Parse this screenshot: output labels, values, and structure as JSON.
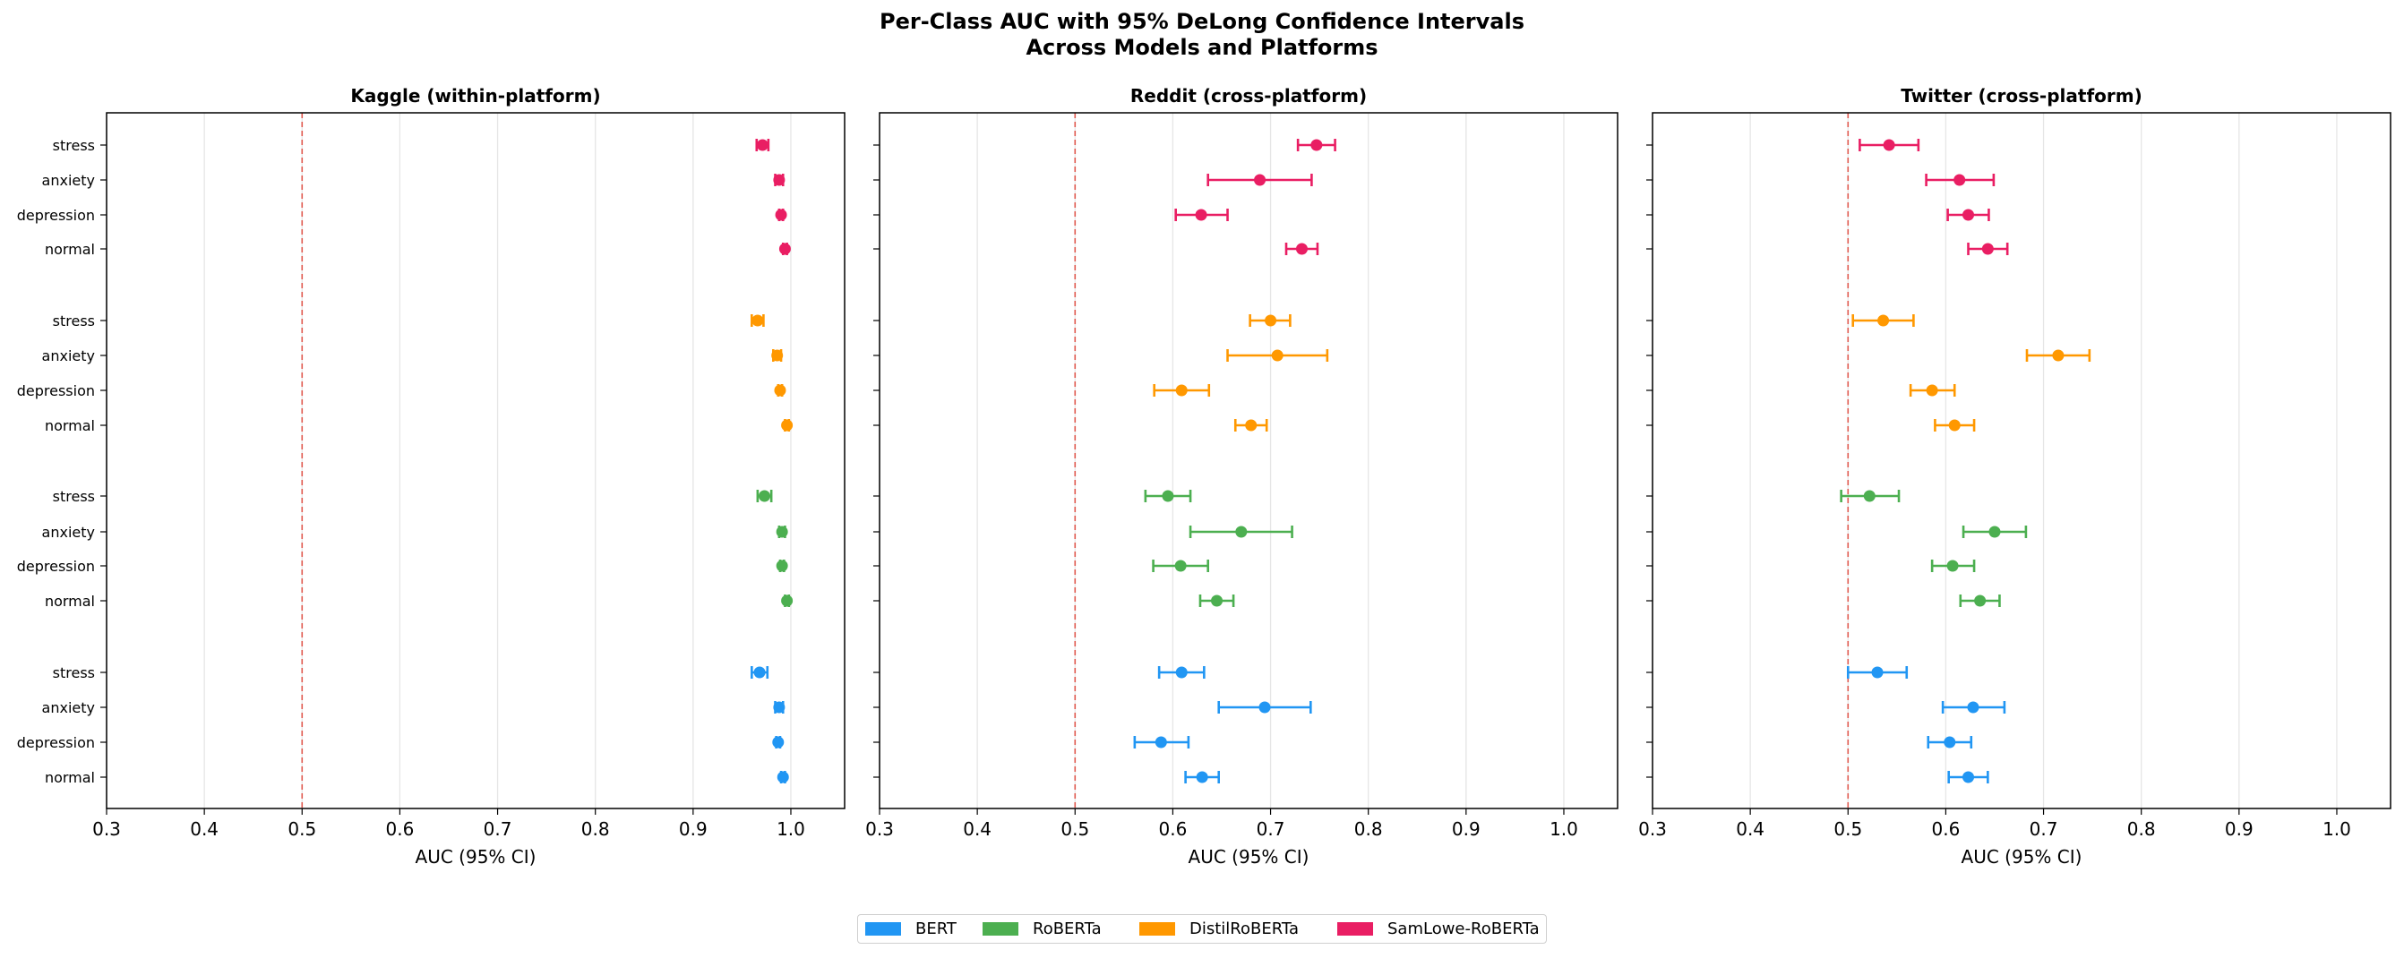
{
  "title_line1": "Per-Class AUC with 95% DeLong Confidence Intervals",
  "title_line2": "Across Models and Platforms",
  "colors": {
    "BERT": "#2196f3",
    "RoBERTa": "#4caf50",
    "DistilRoBERTa": "#ff9800",
    "SamLowe-RoBERTa": "#e91e63",
    "reference_line": "#e05a4f",
    "grid": "#e6e6e6"
  },
  "legend": [
    "BERT",
    "RoBERTa",
    "DistilRoBERTa",
    "SamLowe-RoBERTa"
  ],
  "chart_data": [
    {
      "type": "errorbar",
      "title": "Kaggle (within-platform)",
      "xlabel": "AUC (95% CI)",
      "xlim": [
        0.3,
        1.055
      ],
      "xticks": [
        "0.3",
        "0.4",
        "0.5",
        "0.6",
        "0.7",
        "0.8",
        "0.9",
        "1.0"
      ],
      "reference_x": 0.5,
      "grid": "x",
      "categories_top_to_bottom": [
        {
          "model": "SamLowe-RoBERTa",
          "class": "stress",
          "auc": 0.971,
          "ci": [
            0.965,
            0.977
          ]
        },
        {
          "model": "SamLowe-RoBERTa",
          "class": "anxiety",
          "auc": 0.988,
          "ci": [
            0.984,
            0.992
          ]
        },
        {
          "model": "SamLowe-RoBERTa",
          "class": "depression",
          "auc": 0.99,
          "ci": [
            0.988,
            0.992
          ]
        },
        {
          "model": "SamLowe-RoBERTa",
          "class": "normal",
          "auc": 0.994,
          "ci": [
            0.992,
            0.996
          ]
        },
        {
          "model": "DistilRoBERTa",
          "class": "stress",
          "auc": 0.966,
          "ci": [
            0.96,
            0.972
          ]
        },
        {
          "model": "DistilRoBERTa",
          "class": "anxiety",
          "auc": 0.986,
          "ci": [
            0.982,
            0.99
          ]
        },
        {
          "model": "DistilRoBERTa",
          "class": "depression",
          "auc": 0.989,
          "ci": [
            0.987,
            0.991
          ]
        },
        {
          "model": "DistilRoBERTa",
          "class": "normal",
          "auc": 0.996,
          "ci": [
            0.994,
            0.998
          ]
        },
        {
          "model": "RoBERTa",
          "class": "stress",
          "auc": 0.973,
          "ci": [
            0.966,
            0.98
          ]
        },
        {
          "model": "RoBERTa",
          "class": "anxiety",
          "auc": 0.991,
          "ci": [
            0.988,
            0.994
          ]
        },
        {
          "model": "RoBERTa",
          "class": "depression",
          "auc": 0.991,
          "ci": [
            0.989,
            0.993
          ]
        },
        {
          "model": "RoBERTa",
          "class": "normal",
          "auc": 0.996,
          "ci": [
            0.994,
            0.998
          ]
        },
        {
          "model": "BERT",
          "class": "stress",
          "auc": 0.968,
          "ci": [
            0.96,
            0.976
          ]
        },
        {
          "model": "BERT",
          "class": "anxiety",
          "auc": 0.988,
          "ci": [
            0.984,
            0.992
          ]
        },
        {
          "model": "BERT",
          "class": "depression",
          "auc": 0.987,
          "ci": [
            0.985,
            0.989
          ]
        },
        {
          "model": "BERT",
          "class": "normal",
          "auc": 0.992,
          "ci": [
            0.99,
            0.994
          ]
        }
      ]
    },
    {
      "type": "errorbar",
      "title": "Reddit (cross-platform)",
      "xlabel": "AUC (95% CI)",
      "xlim": [
        0.3,
        1.055
      ],
      "xticks": [
        "0.3",
        "0.4",
        "0.5",
        "0.6",
        "0.7",
        "0.8",
        "0.9",
        "1.0"
      ],
      "reference_x": 0.5,
      "grid": "x",
      "categories_top_to_bottom": [
        {
          "model": "SamLowe-RoBERTa",
          "class": "stress",
          "auc": 0.747,
          "ci": [
            0.728,
            0.766
          ]
        },
        {
          "model": "SamLowe-RoBERTa",
          "class": "anxiety",
          "auc": 0.689,
          "ci": [
            0.636,
            0.742
          ]
        },
        {
          "model": "SamLowe-RoBERTa",
          "class": "depression",
          "auc": 0.629,
          "ci": [
            0.603,
            0.656
          ]
        },
        {
          "model": "SamLowe-RoBERTa",
          "class": "normal",
          "auc": 0.732,
          "ci": [
            0.716,
            0.748
          ]
        },
        {
          "model": "DistilRoBERTa",
          "class": "stress",
          "auc": 0.7,
          "ci": [
            0.679,
            0.72
          ]
        },
        {
          "model": "DistilRoBERTa",
          "class": "anxiety",
          "auc": 0.707,
          "ci": [
            0.656,
            0.758
          ]
        },
        {
          "model": "DistilRoBERTa",
          "class": "depression",
          "auc": 0.609,
          "ci": [
            0.581,
            0.637
          ]
        },
        {
          "model": "DistilRoBERTa",
          "class": "normal",
          "auc": 0.68,
          "ci": [
            0.664,
            0.696
          ]
        },
        {
          "model": "RoBERTa",
          "class": "stress",
          "auc": 0.595,
          "ci": [
            0.572,
            0.618
          ]
        },
        {
          "model": "RoBERTa",
          "class": "anxiety",
          "auc": 0.67,
          "ci": [
            0.618,
            0.722
          ]
        },
        {
          "model": "RoBERTa",
          "class": "depression",
          "auc": 0.608,
          "ci": [
            0.58,
            0.636
          ]
        },
        {
          "model": "RoBERTa",
          "class": "normal",
          "auc": 0.645,
          "ci": [
            0.628,
            0.662
          ]
        },
        {
          "model": "BERT",
          "class": "stress",
          "auc": 0.609,
          "ci": [
            0.586,
            0.632
          ]
        },
        {
          "model": "BERT",
          "class": "anxiety",
          "auc": 0.694,
          "ci": [
            0.647,
            0.741
          ]
        },
        {
          "model": "BERT",
          "class": "depression",
          "auc": 0.588,
          "ci": [
            0.561,
            0.616
          ]
        },
        {
          "model": "BERT",
          "class": "normal",
          "auc": 0.63,
          "ci": [
            0.613,
            0.647
          ]
        }
      ]
    },
    {
      "type": "errorbar",
      "title": "Twitter (cross-platform)",
      "xlabel": "AUC (95% CI)",
      "xlim": [
        0.3,
        1.055
      ],
      "xticks": [
        "0.3",
        "0.4",
        "0.5",
        "0.6",
        "0.7",
        "0.8",
        "0.9",
        "1.0"
      ],
      "reference_x": 0.5,
      "grid": "x",
      "categories_top_to_bottom": [
        {
          "model": "SamLowe-RoBERTa",
          "class": "stress",
          "auc": 0.542,
          "ci": [
            0.512,
            0.572
          ]
        },
        {
          "model": "SamLowe-RoBERTa",
          "class": "anxiety",
          "auc": 0.614,
          "ci": [
            0.58,
            0.649
          ]
        },
        {
          "model": "SamLowe-RoBERTa",
          "class": "depression",
          "auc": 0.623,
          "ci": [
            0.602,
            0.644
          ]
        },
        {
          "model": "SamLowe-RoBERTa",
          "class": "normal",
          "auc": 0.643,
          "ci": [
            0.623,
            0.663
          ]
        },
        {
          "model": "DistilRoBERTa",
          "class": "stress",
          "auc": 0.536,
          "ci": [
            0.505,
            0.567
          ]
        },
        {
          "model": "DistilRoBERTa",
          "class": "anxiety",
          "auc": 0.715,
          "ci": [
            0.683,
            0.747
          ]
        },
        {
          "model": "DistilRoBERTa",
          "class": "depression",
          "auc": 0.586,
          "ci": [
            0.564,
            0.609
          ]
        },
        {
          "model": "DistilRoBERTa",
          "class": "normal",
          "auc": 0.609,
          "ci": [
            0.589,
            0.629
          ]
        },
        {
          "model": "RoBERTa",
          "class": "stress",
          "auc": 0.522,
          "ci": [
            0.493,
            0.552
          ]
        },
        {
          "model": "RoBERTa",
          "class": "anxiety",
          "auc": 0.65,
          "ci": [
            0.618,
            0.682
          ]
        },
        {
          "model": "RoBERTa",
          "class": "depression",
          "auc": 0.607,
          "ci": [
            0.586,
            0.629
          ]
        },
        {
          "model": "RoBERTa",
          "class": "normal",
          "auc": 0.635,
          "ci": [
            0.615,
            0.655
          ]
        },
        {
          "model": "BERT",
          "class": "stress",
          "auc": 0.53,
          "ci": [
            0.5,
            0.56
          ]
        },
        {
          "model": "BERT",
          "class": "anxiety",
          "auc": 0.628,
          "ci": [
            0.597,
            0.66
          ]
        },
        {
          "model": "BERT",
          "class": "depression",
          "auc": 0.604,
          "ci": [
            0.582,
            0.626
          ]
        },
        {
          "model": "BERT",
          "class": "normal",
          "auc": 0.623,
          "ci": [
            0.603,
            0.643
          ]
        }
      ]
    }
  ]
}
